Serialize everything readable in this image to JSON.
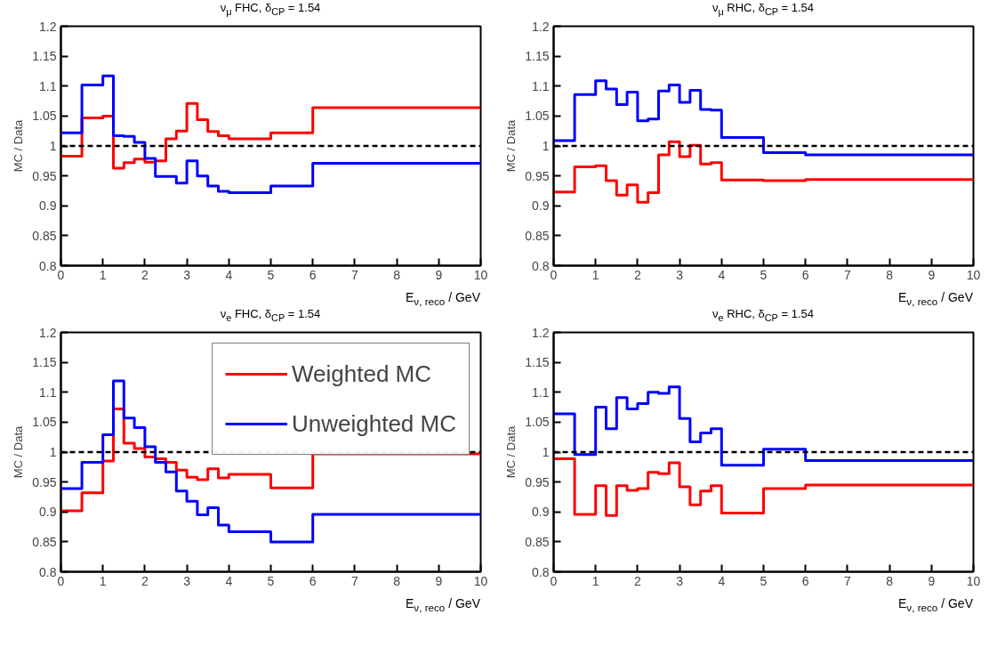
{
  "chart_data": [
    {
      "type": "histogram",
      "title": "ν$_{μ}$ FHC, δ$_{CP}$ = 1.54",
      "xlabel": "E$_{ν, reco}$ / GeV",
      "ylabel": "MC / Data",
      "bins": [
        0,
        0.5,
        1,
        1.25,
        1.5,
        1.75,
        2,
        2.25,
        2.5,
        2.75,
        3,
        3.25,
        3.5,
        3.75,
        4,
        5,
        6,
        10
      ],
      "xlim": [
        0,
        10
      ],
      "xticks": [
        0,
        1,
        2,
        3,
        4,
        5,
        6,
        7,
        8,
        9,
        10
      ],
      "ylim": [
        0.8,
        1.2
      ],
      "yticks": [
        0.8,
        0.85,
        0.9,
        0.95,
        1,
        1.05,
        1.1,
        1.15,
        1.2
      ],
      "series": [
        {
          "color": "#ff0000",
          "values": [
            0.983,
            1.047,
            1.05,
            0.963,
            0.972,
            0.978,
            0.973,
            0.975,
            1.012,
            1.025,
            1.071,
            1.044,
            1.024,
            1.017,
            1.012,
            1.022,
            1.064
          ]
        },
        {
          "color": "#0000ff",
          "values": [
            1.022,
            1.102,
            1.117,
            1.017,
            1.016,
            1.006,
            0.979,
            0.949,
            0.949,
            0.938,
            0.975,
            0.95,
            0.933,
            0.924,
            0.922,
            0.933,
            0.971
          ]
        }
      ],
      "ref_lines": [
        {
          "axis": "y",
          "value": 1,
          "color": "#000000",
          "line_style": "dashed"
        }
      ]
    },
    {
      "type": "histogram",
      "title": "ν$_{μ}$ RHC, δ$_{CP}$ = 1.54",
      "xlabel": "E$_{ν, reco}$ / GeV",
      "ylabel": "MC / Data",
      "bins": [
        0,
        0.5,
        1,
        1.25,
        1.5,
        1.75,
        2,
        2.25,
        2.5,
        2.75,
        3,
        3.25,
        3.5,
        3.75,
        4,
        5,
        6,
        10
      ],
      "xlim": [
        0,
        10
      ],
      "xticks": [
        0,
        1,
        2,
        3,
        4,
        5,
        6,
        7,
        8,
        9,
        10
      ],
      "ylim": [
        0.8,
        1.2
      ],
      "yticks": [
        0.8,
        0.85,
        0.9,
        0.95,
        1,
        1.05,
        1.1,
        1.15,
        1.2
      ],
      "series": [
        {
          "color": "#ff0000",
          "values": [
            0.923,
            0.965,
            0.967,
            0.942,
            0.918,
            0.935,
            0.906,
            0.922,
            0.985,
            1.007,
            0.982,
            1.001,
            0.97,
            0.972,
            0.943,
            0.942,
            0.944
          ]
        },
        {
          "color": "#0000ff",
          "values": [
            1.009,
            1.086,
            1.109,
            1.095,
            1.069,
            1.09,
            1.042,
            1.045,
            1.092,
            1.102,
            1.073,
            1.093,
            1.061,
            1.06,
            1.014,
            0.989,
            0.985
          ]
        }
      ],
      "ref_lines": [
        {
          "axis": "y",
          "value": 1,
          "color": "#000000",
          "line_style": "dashed"
        }
      ]
    },
    {
      "type": "histogram",
      "title": "ν$_{e}$ FHC, δ$_{CP}$ = 1.54",
      "xlabel": "E$_{ν, reco}$ / GeV",
      "ylabel": "MC / Data",
      "bins": [
        0,
        0.5,
        1,
        1.25,
        1.5,
        1.75,
        2,
        2.25,
        2.5,
        2.75,
        3,
        3.25,
        3.5,
        3.75,
        4,
        5,
        6,
        10
      ],
      "xlim": [
        0,
        10
      ],
      "xticks": [
        0,
        1,
        2,
        3,
        4,
        5,
        6,
        7,
        8,
        9,
        10
      ],
      "ylim": [
        0.8,
        1.2
      ],
      "yticks": [
        0.8,
        0.85,
        0.9,
        0.95,
        1,
        1.05,
        1.1,
        1.15,
        1.2
      ],
      "legend": "top right",
      "series": [
        {
          "name": "Weighted MC",
          "color": "#ff0000",
          "values": [
            0.902,
            0.932,
            0.985,
            1.072,
            1.015,
            1.006,
            0.992,
            0.989,
            0.983,
            0.97,
            0.958,
            0.954,
            0.972,
            0.957,
            0.963,
            0.94,
            0.997
          ]
        },
        {
          "name": "Unweighted MC",
          "color": "#0000ff",
          "values": [
            0.939,
            0.983,
            1.029,
            1.119,
            1.057,
            1.041,
            1.009,
            0.983,
            0.967,
            0.935,
            0.918,
            0.895,
            0.907,
            0.878,
            0.867,
            0.85,
            0.896
          ]
        }
      ],
      "ref_lines": [
        {
          "axis": "y",
          "value": 1,
          "color": "#000000",
          "line_style": "dashed"
        }
      ]
    },
    {
      "type": "histogram",
      "title": "ν$_{e}$ RHC, δ$_{CP}$ = 1.54",
      "xlabel": "E$_{ν, reco}$ / GeV",
      "ylabel": "MC / Data",
      "bins": [
        0,
        0.5,
        1,
        1.25,
        1.5,
        1.75,
        2,
        2.25,
        2.5,
        2.75,
        3,
        3.25,
        3.5,
        3.75,
        4,
        5,
        6,
        10
      ],
      "xlim": [
        0,
        10
      ],
      "xticks": [
        0,
        1,
        2,
        3,
        4,
        5,
        6,
        7,
        8,
        9,
        10
      ],
      "ylim": [
        0.8,
        1.2
      ],
      "yticks": [
        0.8,
        0.85,
        0.9,
        0.95,
        1,
        1.05,
        1.1,
        1.15,
        1.2
      ],
      "series": [
        {
          "color": "#ff0000",
          "values": [
            0.989,
            0.896,
            0.944,
            0.894,
            0.944,
            0.936,
            0.939,
            0.966,
            0.964,
            0.982,
            0.942,
            0.912,
            0.935,
            0.944,
            0.898,
            0.939,
            0.945
          ]
        },
        {
          "color": "#0000ff",
          "values": [
            1.064,
            0.996,
            1.075,
            1.039,
            1.091,
            1.072,
            1.081,
            1.1,
            1.098,
            1.109,
            1.056,
            1.017,
            1.032,
            1.039,
            0.978,
            1.005,
            0.986
          ]
        }
      ],
      "ref_lines": [
        {
          "axis": "y",
          "value": 1,
          "color": "#000000",
          "line_style": "dashed"
        }
      ]
    }
  ]
}
